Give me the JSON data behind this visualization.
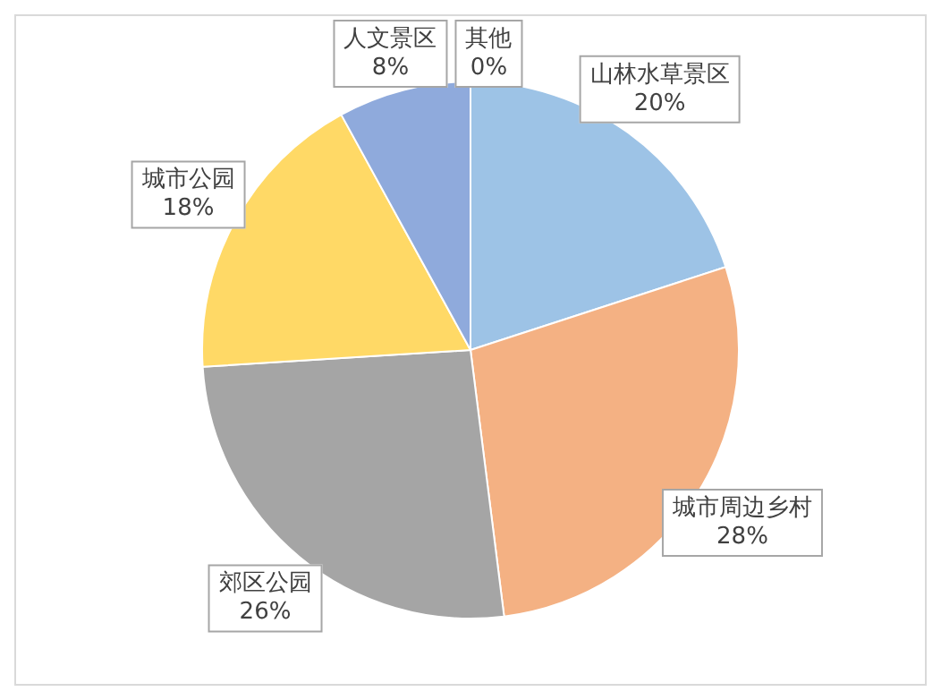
{
  "chart_data": {
    "type": "pie",
    "categories": [
      "山林水草景区",
      "城市周边乡村",
      "郊区公园",
      "城市公园",
      "人文景区",
      "其他"
    ],
    "values": [
      20,
      28,
      26,
      18,
      8,
      0
    ],
    "value_labels": [
      "20%",
      "28%",
      "26%",
      "18%",
      "8%",
      "0%"
    ],
    "colors": [
      "#9dc3e6",
      "#f4b183",
      "#a5a5a5",
      "#ffd966",
      "#8faadc",
      "#70ad47"
    ],
    "legend": false
  }
}
